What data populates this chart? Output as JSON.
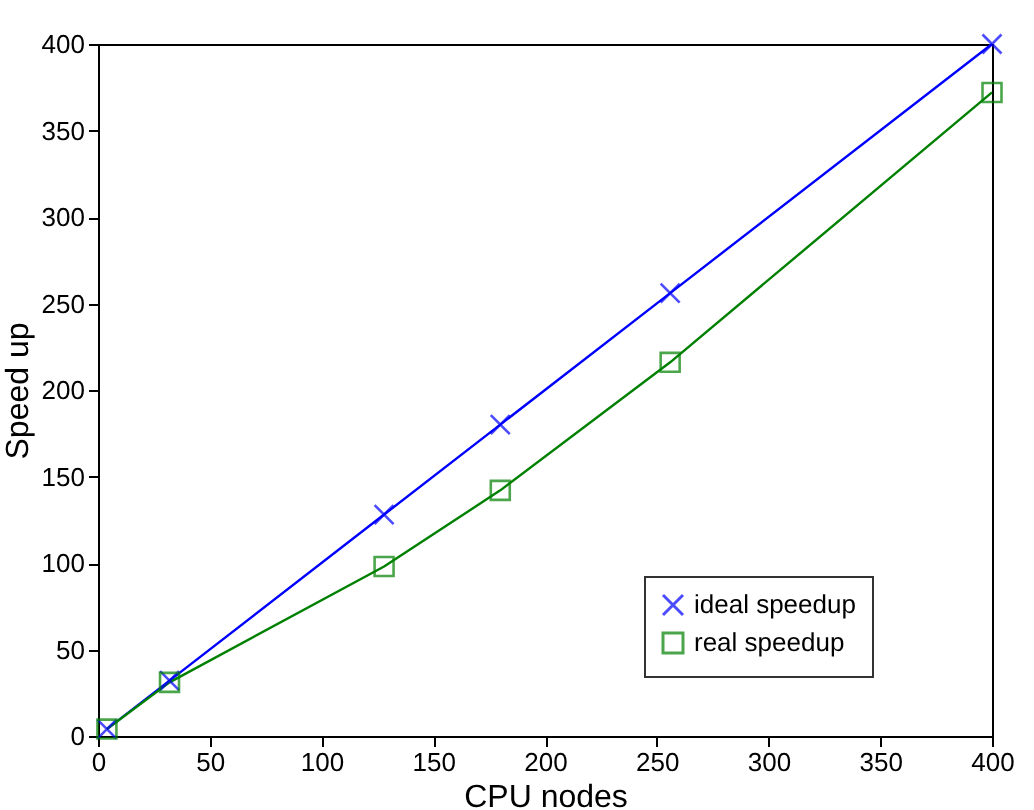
{
  "chart_data": {
    "type": "line",
    "xlabel": "CPU nodes",
    "ylabel": "Speed up",
    "xlim": [
      0,
      400
    ],
    "xticks": [
      0,
      50,
      100,
      150,
      200,
      250,
      300,
      350,
      400
    ],
    "ylim": [
      0,
      400
    ],
    "yticks": [
      0,
      50,
      100,
      150,
      200,
      250,
      300,
      350,
      400
    ],
    "grid": false,
    "legend": "bottom right",
    "x": [
      4,
      32,
      128,
      180,
      256,
      400
    ],
    "series": [
      {
        "name": "ideal speedup",
        "color": "#0000ff",
        "marker": "cross",
        "values": [
          4,
          32,
          128,
          180,
          256,
          400
        ]
      },
      {
        "name": "real speedup",
        "color": "#008000",
        "marker": "square",
        "values": [
          4,
          31,
          98,
          142,
          216,
          372
        ]
      }
    ]
  }
}
